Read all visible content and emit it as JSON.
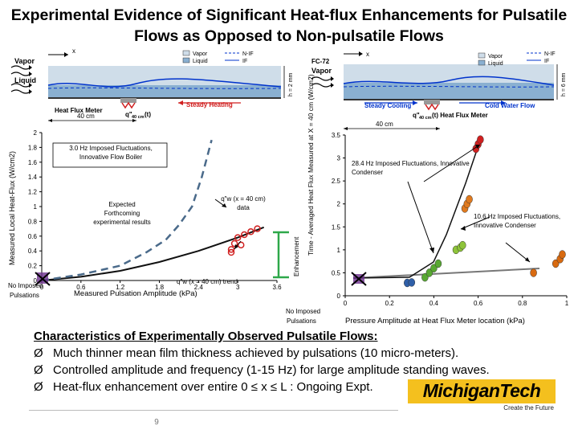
{
  "title": "Experimental Evidence of Significant Heat-flux Enhancements for Pulsatile Flows as Opposed to Non-pulsatile Flows",
  "colors": {
    "plot_line": "#111111",
    "dashed": "#4a6a8a",
    "red_marker": "#d01f1f",
    "purple": "#6b2f8c",
    "bracket": "#2ea84a"
  },
  "left_schematic": {
    "vapor": "Vapor",
    "liquid": "Liquid",
    "x": "x",
    "h": "h = 2 mm",
    "legend": [
      "Vapor",
      "Liquid",
      "N-IF",
      "IF"
    ],
    "meter": "Heat Flux Meter",
    "q_label": "q\"",
    "q_sub": "40 cm",
    "q_suffix": "(t)",
    "steady": "Steady Heating",
    "length": "40 cm"
  },
  "right_schematic": {
    "fluid": "FC-72",
    "vapor": "Vapor",
    "x": "x",
    "h": "h = 6 mm",
    "legend": [
      "Vapor",
      "Liquid",
      "N-IF",
      "IF"
    ],
    "steady": "Steady Cooling",
    "cold": "Cold Water Flow",
    "q_label": "q\"",
    "q_sub": "40 cm",
    "q_suffix": "(t) Heat Flux Meter",
    "length": "40 cm"
  },
  "chart_data": [
    {
      "type": "line",
      "ylabel": "Measured Local Heat-Flux (W/cm2)",
      "xlabel": "Measured Pulsation Amplitude (kPa)",
      "x_first_label": "No Imposed Pulsations",
      "xticks": [
        "0",
        "0.6",
        "1.2",
        "1.8",
        "2.4",
        "3",
        "3.6"
      ],
      "yticks": [
        "0",
        "0.2",
        "0.4",
        "0.6",
        "0.8",
        "1",
        "1.2",
        "1.4",
        "1.6",
        "1.8",
        "2"
      ],
      "xlim": [
        0,
        3.6
      ],
      "ylim": [
        0,
        2
      ],
      "annotations": {
        "boiler": "3.0 Hz Imposed Fluctuations, Innovative Flow Boiler",
        "expected": "Expected Forthcoming experimental results",
        "data_label": "q\"w (x = 40 cm) data",
        "trend_label": "q\"w (x = 40 cm) trend"
      },
      "series": [
        {
          "values": [
            [
              0,
              0
            ],
            [
              0.6,
              0.05
            ],
            [
              1.2,
              0.13
            ],
            [
              1.8,
              0.25
            ],
            [
              2.4,
              0.4
            ],
            [
              3.0,
              0.58
            ],
            [
              3.4,
              0.72
            ]
          ]
        },
        {
          "values": [
            [
              0,
              0
            ],
            [
              0.6,
              0.08
            ],
            [
              1.2,
              0.2
            ],
            [
              1.6,
              0.38
            ],
            [
              1.9,
              0.55
            ],
            [
              2.1,
              0.75
            ],
            [
              2.3,
              1.0
            ],
            [
              2.45,
              1.4
            ],
            [
              2.6,
              1.9
            ]
          ]
        },
        {
          "values": [
            [
              0,
              0
            ],
            [
              2.9,
              0.42
            ],
            [
              2.95,
              0.5
            ],
            [
              3.0,
              0.58
            ],
            [
              3.05,
              0.48
            ],
            [
              3.1,
              0.62
            ],
            [
              3.2,
              0.66
            ],
            [
              3.3,
              0.7
            ],
            [
              2.9,
              0.38
            ]
          ]
        }
      ]
    },
    {
      "type": "scatter",
      "ylabel": "Time - Averaged Heat Flux Measured at X = 40 cm (W/cm2)",
      "side_label": "Enhancement",
      "xlabel": "Pressure Amplitude at Heat Flux Meter location (kPa)",
      "x_first_label": "No Imposed Pulsations",
      "xticks": [
        "0",
        "0.2",
        "0.4",
        "0.6",
        "0.8",
        "1"
      ],
      "yticks": [
        "0",
        "0.5",
        "1",
        "1.5",
        "2",
        "2.5",
        "3",
        "3.5"
      ],
      "xlim": [
        0,
        1
      ],
      "ylim": [
        0,
        3.5
      ],
      "annotations": {
        "condenser": "28.4 Hz Imposed Fluctuations, Innovative Condenser",
        "condenser2": "10.6 Hz Imposed Fluctuations, Innovative Condenser"
      },
      "series": [
        {
          "values": [
            [
              0.0,
              0.3
            ],
            [
              0.28,
              0.28
            ],
            [
              0.3,
              0.29
            ]
          ]
        },
        {
          "values": [
            [
              0.36,
              0.4
            ],
            [
              0.38,
              0.5
            ],
            [
              0.4,
              0.6
            ],
            [
              0.42,
              0.7
            ]
          ]
        },
        {
          "values": [
            [
              0.5,
              1.0
            ],
            [
              0.52,
              1.05
            ],
            [
              0.53,
              1.1
            ]
          ]
        },
        {
          "values": [
            [
              0.54,
              1.9
            ],
            [
              0.55,
              2.0
            ],
            [
              0.56,
              2.1
            ]
          ]
        },
        {
          "values": [
            [
              0.59,
              3.2
            ],
            [
              0.6,
              3.3
            ],
            [
              0.61,
              3.4
            ]
          ]
        },
        {
          "values": [
            [
              0.85,
              0.5
            ],
            [
              0.95,
              0.7
            ],
            [
              0.97,
              0.8
            ],
            [
              0.98,
              0.9
            ]
          ]
        }
      ]
    }
  ],
  "bullets": {
    "heading": "Characteristics of Experimentally Observed Pulsatile Flows:",
    "arrow": "Ø",
    "items": [
      "Much thinner mean film thickness achieved by pulsations (10 micro-meters).",
      "Controlled amplitude and frequency (1-15 Hz) for large amplitude standing waves.",
      "Heat-flux enhancement over entire 0 ≤ x ≤ L : Ongoing Expt."
    ]
  },
  "logo": {
    "text": "MichiganTech",
    "tagline": "Create the Future"
  },
  "page_number": "9"
}
